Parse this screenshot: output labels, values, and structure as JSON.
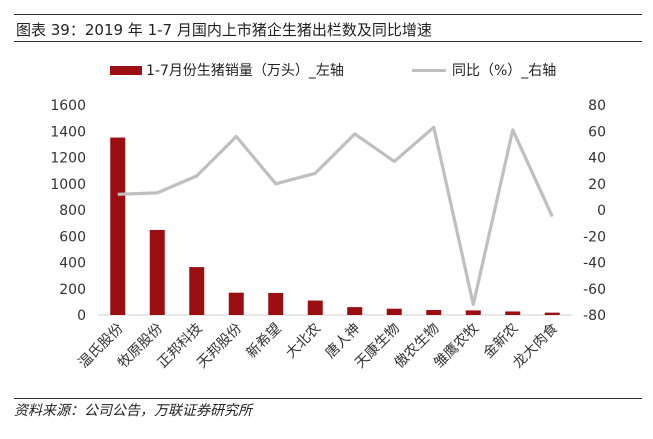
{
  "figure": {
    "title": "图表 39：2019 年 1-7 月国内上市猪企生猪出栏数及同比增速",
    "source": "资料来源：公司公告，万联证券研究所"
  },
  "chart_data": {
    "type": "bar",
    "categories": [
      "温氏股份",
      "牧原股份",
      "正邦科技",
      "天邦股份",
      "新希望",
      "大北农",
      "唐人神",
      "天康生物",
      "傲农生物",
      "雏鹰农牧",
      "金新农",
      "龙大肉食"
    ],
    "series": [
      {
        "name": "1-7月份生猪销量（万头）_左轴",
        "type": "bar",
        "axis": "left",
        "color": "#9b0f12",
        "values": [
          1352,
          648,
          365,
          170,
          168,
          110,
          60,
          48,
          38,
          35,
          27,
          18
        ]
      },
      {
        "name": "同比（%）_右轴",
        "type": "line",
        "axis": "right",
        "color": "#bfbfbf",
        "values": [
          12,
          13,
          26,
          56,
          20,
          28,
          58,
          37,
          63,
          -72,
          61,
          -5
        ]
      }
    ],
    "y_left": {
      "min": 0,
      "max": 1600,
      "step": 200,
      "ticks": [
        "0",
        "200",
        "400",
        "600",
        "800",
        "1000",
        "1200",
        "1400",
        "1600"
      ]
    },
    "y_right": {
      "min": -80,
      "max": 80,
      "step": 20,
      "ticks": [
        "-80",
        "-60",
        "-40",
        "-20",
        "0",
        "20",
        "40",
        "60",
        "80"
      ]
    },
    "grid": false,
    "legend_position": "top"
  }
}
